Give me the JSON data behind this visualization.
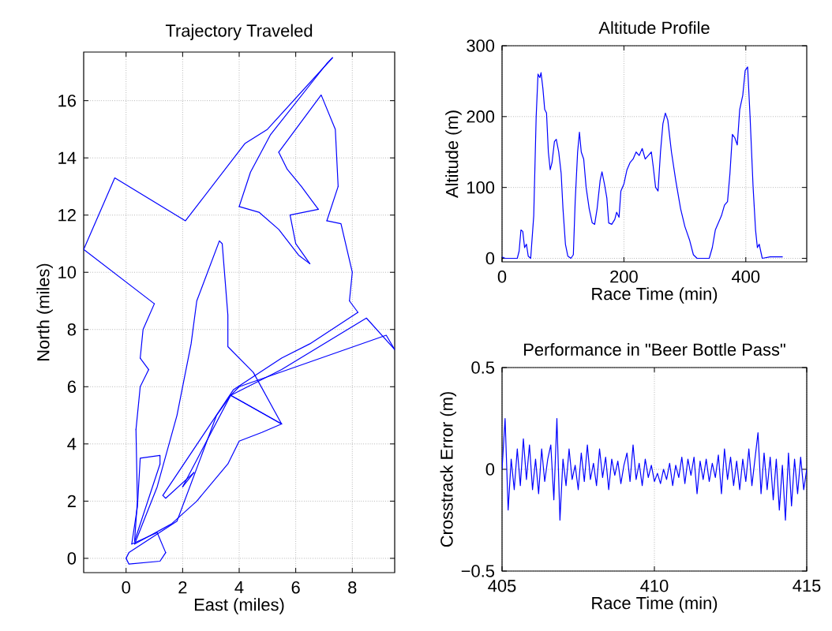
{
  "chart_data": [
    {
      "type": "line",
      "title": "Trajectory Traveled",
      "xlabel": "East (miles)",
      "ylabel": "North (miles)",
      "color": "#0000ff",
      "grid": true,
      "xlim": [
        -1.5,
        9.5
      ],
      "ylim": [
        -0.5,
        17.7
      ],
      "xticks": [
        0,
        2,
        4,
        6,
        8
      ],
      "yticks": [
        0,
        2,
        4,
        6,
        8,
        10,
        12,
        14,
        16
      ],
      "x": [
        0,
        0.1,
        1.2,
        1.4,
        1.1,
        0.2,
        0.4,
        0.5,
        1.2,
        1.2,
        0.4,
        0.3,
        0.4,
        0.35,
        0.5,
        0.8,
        0.5,
        0.6,
        1.0,
        -1.5,
        -0.4,
        2.1,
        4.2,
        5.0,
        7.3,
        7.1,
        5.1,
        4.4,
        4.0,
        4.7,
        5.4,
        6.1,
        6.5,
        6.0,
        5.8,
        6.8,
        6.2,
        5.7,
        5.4,
        6.9,
        7.4,
        7.5,
        7.1,
        7.6,
        8.0,
        7.9,
        8.2,
        6.5,
        5.5,
        3.8,
        1.3,
        1.4,
        2.4,
        2.0,
        3.7,
        5.5,
        8.5,
        9.5,
        9.2,
        4.0,
        3.7,
        5.5,
        4.8,
        4.0,
        3.6,
        2.5,
        1.6,
        0.3,
        1.1,
        1.8,
        2.3,
        2.5,
        3.3,
        3.4,
        3.6,
        3.6,
        4.5,
        5.5,
        3.7,
        3.2,
        1.8,
        0.1,
        0
      ],
      "values": [
        0,
        -0.2,
        -0.1,
        0.2,
        0.9,
        0.5,
        1.8,
        3.5,
        3.6,
        3.3,
        0.9,
        0.6,
        2.0,
        4.5,
        6.0,
        6.6,
        7.0,
        8.0,
        8.9,
        10.8,
        13.3,
        11.8,
        14.5,
        15.0,
        17.5,
        17.3,
        14.8,
        13.5,
        12.3,
        12.1,
        11.5,
        10.6,
        10.3,
        11.0,
        12.0,
        12.2,
        13.0,
        13.6,
        14.2,
        16.2,
        15.0,
        13.0,
        11.8,
        11.7,
        10.0,
        9.0,
        8.6,
        7.5,
        7.0,
        5.9,
        2.2,
        2.1,
        3.0,
        2.5,
        5.7,
        6.6,
        8.4,
        7.3,
        7.8,
        6.0,
        5.7,
        4.7,
        4.4,
        4.1,
        3.3,
        2.0,
        1.2,
        0.5,
        2.5,
        5.0,
        7.5,
        9.0,
        11.1,
        11.0,
        8.5,
        7.4,
        6.5,
        4.7,
        5.7,
        5.0,
        1.3,
        0.2,
        0
      ]
    },
    {
      "type": "line",
      "title": "Altitude Profile",
      "xlabel": "Race Time (min)",
      "ylabel": "Altitude (m)",
      "color": "#0000ff",
      "grid": true,
      "xlim": [
        0,
        500
      ],
      "ylim": [
        -5,
        300
      ],
      "xticks": [
        0,
        200,
        400
      ],
      "yticks": [
        0,
        100,
        200,
        300
      ],
      "x": [
        0,
        5,
        25,
        28,
        31,
        34,
        37,
        40,
        43,
        47,
        52,
        56,
        59,
        62,
        64,
        67,
        70,
        73,
        76,
        79,
        82,
        86,
        89,
        93,
        97,
        100,
        104,
        108,
        113,
        117,
        120,
        124,
        127,
        130,
        134,
        138,
        143,
        148,
        152,
        156,
        161,
        164,
        168,
        172,
        175,
        180,
        185,
        188,
        192,
        195,
        200,
        205,
        210,
        215,
        220,
        225,
        230,
        235,
        240,
        245,
        248,
        252,
        256,
        260,
        264,
        268,
        272,
        278,
        285,
        293,
        300,
        308,
        314,
        320,
        340,
        345,
        350,
        355,
        360,
        365,
        370,
        374,
        378,
        382,
        386,
        390,
        395,
        399,
        403,
        407,
        412,
        416,
        419,
        422,
        427,
        440,
        460
      ],
      "values": [
        2,
        0,
        0,
        10,
        40,
        38,
        15,
        20,
        3,
        0,
        60,
        200,
        260,
        255,
        262,
        240,
        210,
        205,
        150,
        125,
        135,
        165,
        168,
        150,
        120,
        70,
        20,
        3,
        0,
        5,
        80,
        150,
        178,
        150,
        140,
        100,
        70,
        50,
        48,
        70,
        110,
        122,
        105,
        85,
        50,
        48,
        55,
        65,
        58,
        95,
        105,
        125,
        135,
        140,
        150,
        145,
        155,
        140,
        145,
        150,
        130,
        100,
        95,
        150,
        190,
        205,
        195,
        150,
        110,
        70,
        45,
        25,
        5,
        0,
        0,
        15,
        40,
        50,
        60,
        75,
        80,
        120,
        175,
        170,
        160,
        210,
        230,
        265,
        270,
        200,
        100,
        40,
        15,
        20,
        0,
        2,
        2
      ]
    },
    {
      "type": "line",
      "title": "Performance in \"Beer Bottle Pass\"",
      "xlabel": "Race Time (min)",
      "ylabel": "Crosstrack Error (m)",
      "color": "#0000ff",
      "grid": true,
      "xlim": [
        405,
        415
      ],
      "ylim": [
        -0.5,
        0.5
      ],
      "xticks": [
        405,
        410,
        415
      ],
      "yticks": [
        {
          "value": -0.5,
          "label": "−0.5"
        },
        0,
        0.5
      ],
      "x": [
        405.0,
        405.1,
        405.2,
        405.3,
        405.4,
        405.5,
        405.6,
        405.7,
        405.8,
        405.9,
        406.0,
        406.1,
        406.2,
        406.3,
        406.4,
        406.5,
        406.6,
        406.7,
        406.8,
        406.9,
        407.0,
        407.1,
        407.2,
        407.3,
        407.4,
        407.5,
        407.6,
        407.7,
        407.8,
        407.9,
        408.0,
        408.1,
        408.2,
        408.3,
        408.4,
        408.5,
        408.6,
        408.7,
        408.8,
        408.9,
        409.0,
        409.1,
        409.2,
        409.3,
        409.4,
        409.5,
        409.6,
        409.7,
        409.8,
        409.9,
        410.0,
        410.1,
        410.2,
        410.3,
        410.4,
        410.5,
        410.6,
        410.7,
        410.8,
        410.9,
        411.0,
        411.1,
        411.2,
        411.3,
        411.4,
        411.5,
        411.6,
        411.7,
        411.8,
        411.9,
        412.0,
        412.1,
        412.2,
        412.3,
        412.4,
        412.5,
        412.6,
        412.7,
        412.8,
        412.9,
        413.0,
        413.1,
        413.2,
        413.3,
        413.4,
        413.5,
        413.6,
        413.7,
        413.8,
        413.9,
        414.0,
        414.1,
        414.2,
        414.3,
        414.4,
        414.5,
        414.6,
        414.7,
        414.8,
        414.9,
        415.0
      ],
      "values": [
        0.0,
        0.25,
        -0.2,
        0.05,
        -0.1,
        0.1,
        -0.08,
        0.15,
        -0.05,
        0.12,
        -0.1,
        0.05,
        -0.12,
        0.1,
        -0.06,
        0.05,
        0.12,
        -0.15,
        0.25,
        -0.25,
        0.05,
        -0.08,
        0.1,
        -0.05,
        0.02,
        -0.1,
        0.08,
        -0.06,
        0.12,
        -0.05,
        0.03,
        -0.08,
        0.1,
        -0.04,
        0.06,
        -0.1,
        0.05,
        -0.03,
        0.04,
        -0.07,
        0.02,
        0.08,
        -0.06,
        0.12,
        -0.05,
        0.03,
        -0.08,
        0.05,
        -0.04,
        0.02,
        -0.06,
        -0.02,
        -0.07,
        0.0,
        -0.05,
        0.03,
        -0.08,
        0.02,
        -0.04,
        0.06,
        -0.07,
        0.05,
        -0.03,
        0.06,
        -0.12,
        0.04,
        -0.05,
        0.05,
        -0.06,
        0.03,
        -0.04,
        0.07,
        -0.12,
        0.1,
        -0.05,
        0.06,
        -0.08,
        0.04,
        -0.1,
        0.05,
        -0.06,
        0.1,
        -0.08,
        0.05,
        0.18,
        -0.12,
        0.08,
        -0.1,
        0.06,
        -0.15,
        0.05,
        -0.2,
        0.02,
        -0.25,
        0.08,
        -0.18,
        0.05,
        -0.12,
        0.06,
        -0.1,
        0.0
      ]
    }
  ]
}
